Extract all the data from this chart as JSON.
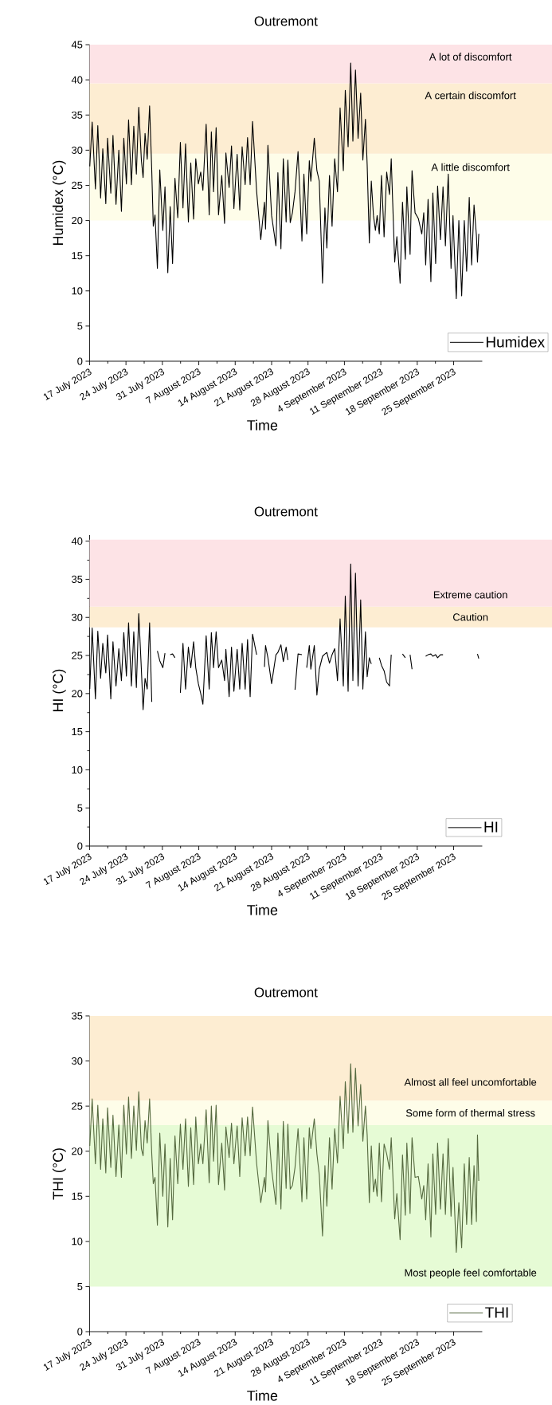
{
  "chart_data": [
    {
      "type": "line",
      "title": "Outremont",
      "xlabel": "Time",
      "ylabel": "Humidex (°C)",
      "x": [
        "2023-07-17T01:00",
        "2023-07-17T12:00",
        "2023-07-18T03:00",
        "2023-07-18T14:00",
        "2023-07-19T03:00",
        "2023-07-19T13:00",
        "2023-07-20T03:00",
        "2023-07-20T11:00",
        "2023-07-21T02:00",
        "2023-07-21T12:00",
        "2023-07-22T02:00",
        "2023-07-22T15:00",
        "2023-07-23T03:00",
        "2023-07-23T14:00",
        "2023-07-24T02:00",
        "2023-07-24T12:00",
        "2023-07-25T01:00",
        "2023-07-25T12:00",
        "2023-07-26T00:00",
        "2023-07-26T11:00",
        "2023-07-26T23:00",
        "2023-07-27T07:00",
        "2023-07-27T16:00",
        "2023-07-28T02:00",
        "2023-07-28T13:00",
        "2023-07-28T23:00",
        "2023-07-29T06:00",
        "2023-07-29T14:00",
        "2023-07-30T01:00",
        "2023-07-30T12:00",
        "2023-07-31T02:00",
        "2023-07-31T12:00",
        "2023-08-01T01:00",
        "2023-08-01T12:00",
        "2023-08-01T23:00",
        "2023-08-02T10:00",
        "2023-08-02T23:00",
        "2023-08-03T11:00",
        "2023-08-03T23:00",
        "2023-08-04T11:00",
        "2023-08-05T00:00",
        "2023-08-05T11:00",
        "2023-08-06T00:00",
        "2023-08-06T10:00",
        "2023-08-06T22:00",
        "2023-08-07T09:00",
        "2023-08-07T19:00",
        "2023-08-08T10:00",
        "2023-08-09T00:00",
        "2023-08-09T10:00",
        "2023-08-09T20:00",
        "2023-08-10T08:00",
        "2023-08-10T19:00",
        "2023-08-11T10:00",
        "2023-08-11T23:00",
        "2023-08-12T05:00",
        "2023-08-12T20:00",
        "2023-08-13T07:00",
        "2023-08-13T18:00",
        "2023-08-14T09:00",
        "2023-08-14T21:00",
        "2023-08-15T08:00",
        "2023-08-15T22:00",
        "2023-08-16T09:00",
        "2023-08-16T21:00",
        "2023-08-17T08:00",
        "2023-08-18T03:00",
        "2023-08-18T22:00",
        "2023-08-19T15:00",
        "2023-08-19T20:00",
        "2023-08-20T07:00",
        "2023-08-21T00:00",
        "2023-08-21T20:00",
        "2023-08-22T05:00",
        "2023-08-22T19:00",
        "2023-08-23T06:00",
        "2023-08-23T19:00",
        "2023-08-24T03:00",
        "2023-08-24T14:00",
        "2023-08-25T00:00",
        "2023-08-25T12:00",
        "2023-08-26T02:00",
        "2023-08-26T20:00",
        "2023-08-27T05:00",
        "2023-08-27T18:00",
        "2023-08-28T06:00",
        "2023-08-28T13:00",
        "2023-08-29T05:00",
        "2023-08-29T17:00",
        "2023-08-30T04:00",
        "2023-08-30T19:00",
        "2023-08-31T06:00",
        "2023-08-31T15:00",
        "2023-09-01T03:00",
        "2023-09-01T15:00",
        "2023-09-02T03:00",
        "2023-09-02T16:00",
        "2023-09-03T04:00",
        "2023-09-03T19:00",
        "2023-09-04T04:00",
        "2023-09-04T17:00",
        "2023-09-05T05:00",
        "2023-09-05T15:00",
        "2023-09-06T03:00",
        "2023-09-06T15:00",
        "2023-09-07T03:00",
        "2023-09-07T13:00",
        "2023-09-08T01:00",
        "2023-09-08T09:00",
        "2023-09-08T19:00",
        "2023-09-09T04:00",
        "2023-09-09T14:00",
        "2023-09-09T23:00",
        "2023-09-10T07:00",
        "2023-09-10T17:00",
        "2023-09-11T03:00",
        "2023-09-11T15:00",
        "2023-09-12T03:00",
        "2023-09-12T16:00",
        "2023-09-13T00:00",
        "2023-09-13T16:00",
        "2023-09-14T02:00",
        "2023-09-14T17:00",
        "2023-09-15T04:00",
        "2023-09-15T17:00",
        "2023-09-16T00:00",
        "2023-09-16T15:00",
        "2023-09-17T00:00",
        "2023-09-17T14:00",
        "2023-09-18T05:00",
        "2023-09-18T21:00",
        "2023-09-19T06:00",
        "2023-09-19T15:00",
        "2023-09-20T02:00",
        "2023-09-20T15:00",
        "2023-09-21T00:00",
        "2023-09-21T13:00",
        "2023-09-21T22:00",
        "2023-09-22T11:00",
        "2023-09-22T23:00",
        "2023-09-23T10:00",
        "2023-09-23T23:00",
        "2023-09-24T12:00",
        "2023-09-24T21:00",
        "2023-09-25T12:00",
        "2023-09-26T00:00",
        "2023-09-26T13:00",
        "2023-09-27T01:00",
        "2023-09-27T12:00",
        "2023-09-28T00:00",
        "2023-09-28T11:00",
        "2023-09-28T22:00",
        "2023-09-29T09:00",
        "2023-09-29T14:00",
        "2023-09-29T20:00"
      ],
      "series": [
        {
          "name": "Humidex",
          "color": "#000000",
          "values": [
            27.7,
            34.0,
            24.5,
            33.5,
            23.2,
            30.2,
            22.4,
            31.7,
            23.9,
            32.1,
            22.3,
            30.0,
            21.3,
            31.7,
            25.2,
            34.3,
            25.1,
            33.4,
            26.6,
            36.1,
            28.6,
            26.1,
            32.4,
            28.7,
            36.3,
            27.1,
            19.2,
            20.8,
            13.2,
            27.2,
            18.6,
            24.8,
            12.6,
            22.0,
            13.9,
            26.0,
            20.4,
            31.1,
            21.8,
            30.9,
            19.8,
            28.2,
            20.2,
            28.8,
            25.2,
            26.9,
            24.3,
            33.7,
            20.8,
            32.6,
            24.1,
            33.2,
            20.8,
            26.4,
            19.6,
            29.6,
            24.7,
            30.6,
            21.7,
            29.4,
            21.5,
            30.5,
            25.1,
            31.8,
            25.1,
            34.1,
            24.1,
            17.3,
            22.6,
            18.8,
            30.7,
            20.7,
            16.4,
            26.8,
            16.0,
            28.8,
            19.8,
            28.6,
            19.7,
            21.1,
            24.1,
            29.8,
            17.1,
            26.6,
            18.1,
            28.5,
            25.6,
            31.7,
            27.1,
            25.6,
            11.1,
            21.8,
            16.1,
            26.4,
            19.2,
            28.8,
            24.1,
            36.0,
            27.1,
            38.5,
            30.5,
            42.4,
            31.3,
            41.4,
            31.7,
            38.1,
            28.6,
            34.4,
            27.9,
            16.8,
            25.6,
            20.7,
            18.6,
            20.7,
            18.1,
            26.4,
            17.7,
            26.9,
            23.7,
            28.8,
            14.1,
            17.7,
            11.1,
            22.6,
            14.5,
            24.8,
            15.2,
            27.1,
            21.1,
            20.3,
            18.1,
            21.1,
            13.7,
            23.0,
            11.3,
            23.9,
            13.9,
            24.9,
            17.3,
            24.8,
            16.4,
            26.6,
            13.2,
            20.7,
            8.9,
            20.0,
            9.3,
            20.0,
            12.8,
            23.3,
            13.7,
            22.2,
            17.9,
            14.1,
            18.1
          ]
        }
      ],
      "xlim": [
        "2023-07-17",
        "2023-09-30T12:00"
      ],
      "xticks": [
        {
          "value": "2023-07-17",
          "label": "17 July 2023"
        },
        {
          "value": "2023-07-24",
          "label": "24 July 2023"
        },
        {
          "value": "2023-07-31",
          "label": "31 July 2023"
        },
        {
          "value": "2023-08-07",
          "label": "7 August 2023"
        },
        {
          "value": "2023-08-14",
          "label": "14 August 2023"
        },
        {
          "value": "2023-08-21",
          "label": "21 August 2023"
        },
        {
          "value": "2023-08-28",
          "label": "28 August 2023"
        },
        {
          "value": "2023-09-04",
          "label": "4 September 2023"
        },
        {
          "value": "2023-09-11",
          "label": "11 September 2023"
        },
        {
          "value": "2023-09-18",
          "label": "18 September 2023"
        },
        {
          "value": "2023-09-25",
          "label": "25 September 2023"
        }
      ],
      "ylim": [
        0,
        45
      ],
      "yticks": [
        0,
        5,
        10,
        15,
        20,
        25,
        30,
        35,
        40,
        45
      ],
      "bands": [
        {
          "axis": "y",
          "from": 20,
          "to": 29.5,
          "label": "A little discomfort",
          "color": "#fefde9"
        },
        {
          "axis": "y",
          "from": 29.5,
          "to": 39.5,
          "label": "A certain discomfort",
          "color": "#fdedd2"
        },
        {
          "axis": "y",
          "from": 39.5,
          "to": 45,
          "label": "A lot of discomfort",
          "color": "#fde3e6"
        }
      ],
      "legend": "bottom right"
    },
    {
      "type": "line",
      "title": "Outremont",
      "xlabel": "Time",
      "ylabel": "HI (°C)",
      "x": [
        "2023-07-17T01:00",
        "2023-07-17T12:00",
        "2023-07-18T03:00",
        "2023-07-18T14:00",
        "2023-07-19T03:00",
        "2023-07-19T13:00",
        "2023-07-20T03:00",
        "2023-07-20T11:00",
        "2023-07-21T02:00",
        "2023-07-21T12:00",
        "2023-07-22T02:00",
        "2023-07-22T15:00",
        "2023-07-23T03:00",
        "2023-07-23T14:00",
        "2023-07-24T02:00",
        "2023-07-24T12:00",
        "2023-07-25T01:00",
        "2023-07-25T12:00",
        "2023-07-26T00:00",
        "2023-07-26T11:00",
        "2023-07-26T23:00",
        "2023-07-27T07:00",
        "2023-07-27T16:00",
        "2023-07-28T02:00",
        "2023-07-28T13:00",
        "2023-07-28T23:00",
        "2023-07-29T06:00",
        "2023-07-29T14:00",
        "2023-07-30T01:00",
        "2023-07-30T12:00",
        "2023-07-31T02:00",
        "2023-07-31T12:00",
        "2023-08-01T01:00",
        "2023-08-01T12:00",
        "2023-08-01T23:00",
        "2023-08-02T10:00",
        "2023-08-02T23:00",
        "2023-08-03T11:00",
        "2023-08-03T23:00",
        "2023-08-04T11:00",
        "2023-08-05T00:00",
        "2023-08-05T11:00",
        "2023-08-06T00:00",
        "2023-08-06T10:00",
        "2023-08-06T22:00",
        "2023-08-07T09:00",
        "2023-08-07T19:00",
        "2023-08-08T10:00",
        "2023-08-09T00:00",
        "2023-08-09T10:00",
        "2023-08-09T20:00",
        "2023-08-10T08:00",
        "2023-08-10T19:00",
        "2023-08-11T10:00",
        "2023-08-11T23:00",
        "2023-08-12T05:00",
        "2023-08-12T20:00",
        "2023-08-13T07:00",
        "2023-08-13T18:00",
        "2023-08-14T09:00",
        "2023-08-14T21:00",
        "2023-08-15T08:00",
        "2023-08-15T22:00",
        "2023-08-16T09:00",
        "2023-08-16T21:00",
        "2023-08-17T08:00",
        "2023-08-18T03:00",
        "2023-08-18T22:00",
        "2023-08-19T15:00",
        "2023-08-19T20:00",
        "2023-08-20T07:00",
        "2023-08-21T00:00",
        "2023-08-21T20:00",
        "2023-08-22T05:00",
        "2023-08-22T19:00",
        "2023-08-23T06:00",
        "2023-08-23T19:00",
        "2023-08-24T03:00",
        "2023-08-24T14:00",
        "2023-08-25T00:00",
        "2023-08-25T12:00",
        "2023-08-26T02:00",
        "2023-08-26T20:00",
        "2023-08-27T05:00",
        "2023-08-27T18:00",
        "2023-08-28T06:00",
        "2023-08-28T13:00",
        "2023-08-29T05:00",
        "2023-08-29T17:00",
        "2023-08-30T04:00",
        "2023-08-30T19:00",
        "2023-08-31T06:00",
        "2023-08-31T15:00",
        "2023-09-01T03:00",
        "2023-09-01T15:00",
        "2023-09-02T03:00",
        "2023-09-02T16:00",
        "2023-09-03T04:00",
        "2023-09-03T19:00",
        "2023-09-04T04:00",
        "2023-09-04T17:00",
        "2023-09-05T05:00",
        "2023-09-05T15:00",
        "2023-09-06T03:00",
        "2023-09-06T15:00",
        "2023-09-07T03:00",
        "2023-09-07T13:00",
        "2023-09-08T01:00",
        "2023-09-08T09:00",
        "2023-09-08T19:00",
        "2023-09-09T04:00",
        "2023-09-09T14:00",
        "2023-09-09T23:00",
        "2023-09-10T07:00",
        "2023-09-10T17:00",
        "2023-09-11T03:00",
        "2023-09-11T15:00",
        "2023-09-12T03:00",
        "2023-09-12T16:00",
        "2023-09-13T00:00",
        "2023-09-13T16:00",
        "2023-09-14T02:00",
        "2023-09-14T17:00",
        "2023-09-15T04:00",
        "2023-09-15T17:00",
        "2023-09-16T00:00",
        "2023-09-16T15:00",
        "2023-09-17T00:00",
        "2023-09-17T14:00",
        "2023-09-18T05:00",
        "2023-09-18T21:00",
        "2023-09-19T06:00",
        "2023-09-19T15:00",
        "2023-09-20T02:00",
        "2023-09-20T15:00",
        "2023-09-21T00:00",
        "2023-09-21T13:00",
        "2023-09-21T22:00",
        "2023-09-22T11:00",
        "2023-09-22T23:00",
        "2023-09-23T10:00",
        "2023-09-23T23:00",
        "2023-09-24T12:00",
        "2023-09-24T21:00",
        "2023-09-25T12:00",
        "2023-09-26T00:00",
        "2023-09-26T13:00",
        "2023-09-27T01:00",
        "2023-09-27T12:00",
        "2023-09-28T00:00",
        "2023-09-28T11:00",
        "2023-09-28T22:00",
        "2023-09-29T09:00",
        "2023-09-29T14:00",
        "2023-09-29T20:00"
      ],
      "series": [
        {
          "name": "HI",
          "color": "#000000",
          "values": [
            20.6,
            28.6,
            19.3,
            28.2,
            22.0,
            26.6,
            22.7,
            27.7,
            19.3,
            26.8,
            21.0,
            25.9,
            21.7,
            28.0,
            22.3,
            29.3,
            21.0,
            28.1,
            20.8,
            30.5,
            23.2,
            17.9,
            22.0,
            20.6,
            29.3,
            18.9,
            null,
            null,
            25.6,
            24.3,
            23.4,
            25.3,
            null,
            25.1,
            25.2,
            24.7,
            null,
            20.1,
            26.6,
            20.6,
            26.1,
            23.4,
            26.8,
            23.4,
            21.3,
            20.0,
            18.6,
            27.6,
            20.6,
            28.0,
            23.4,
            28.1,
            23.4,
            24.4,
            21.7,
            25.8,
            19.6,
            26.1,
            20.3,
            25.8,
            20.6,
            26.6,
            20.6,
            27.1,
            19.6,
            27.8,
            25.1,
            null,
            23.5,
            26.3,
            24.7,
            21.3,
            25.1,
            25.4,
            26.4,
            24.2,
            26.1,
            24.4,
            null,
            null,
            20.5,
            25.2,
            25.1,
            null,
            23.4,
            26.3,
            23.2,
            26.3,
            19.8,
            23.2,
            24.9,
            25.2,
            25.4,
            24.0,
            25.1,
            25.9,
            21.7,
            29.8,
            21.0,
            32.8,
            20.3,
            37.0,
            21.7,
            35.8,
            21.0,
            32.3,
            20.6,
            28.1,
            22.2,
            24.7,
            23.9,
            null,
            null,
            null,
            24.7,
            23.7,
            23.0,
            21.5,
            21.0,
            25.1,
            null,
            null,
            null,
            25.2,
            24.7,
            null,
            25.1,
            23.2,
            null,
            null,
            null,
            null,
            24.9,
            25.1,
            25.2,
            24.9,
            25.1,
            24.7,
            25.1,
            25.1,
            null,
            null,
            null,
            null,
            null,
            null,
            null,
            null,
            null,
            null,
            null,
            null,
            null,
            25.2,
            24.6
          ]
        }
      ],
      "xlim": [
        "2023-07-17",
        "2023-09-30T12:00"
      ],
      "xticks": [
        {
          "value": "2023-07-17",
          "label": "17 July 2023"
        },
        {
          "value": "2023-07-24",
          "label": "24 July 2023"
        },
        {
          "value": "2023-07-31",
          "label": "31 July 2023"
        },
        {
          "value": "2023-08-07",
          "label": "7 August 2023"
        },
        {
          "value": "2023-08-14",
          "label": "14 August 2023"
        },
        {
          "value": "2023-08-21",
          "label": "21 August 2023"
        },
        {
          "value": "2023-08-28",
          "label": "28 August 2023"
        },
        {
          "value": "2023-09-04",
          "label": "4 September 2023"
        },
        {
          "value": "2023-09-11",
          "label": "11 September 2023"
        },
        {
          "value": "2023-09-18",
          "label": "18 September 2023"
        },
        {
          "value": "2023-09-25",
          "label": "25 September 2023"
        }
      ],
      "ylim": [
        0,
        40.8
      ],
      "yticks": [
        0,
        5,
        10,
        15,
        20,
        25,
        30,
        35,
        40
      ],
      "bands": [
        {
          "axis": "y",
          "from": 28.7,
          "to": 31.4,
          "label": "Caution",
          "color": "#fdedd2"
        },
        {
          "axis": "y",
          "from": 31.4,
          "to": 40.2,
          "label": "Extreme caution",
          "color": "#fde3e6"
        }
      ],
      "legend": "bottom right"
    },
    {
      "type": "line",
      "title": "Outremont",
      "xlabel": "Time",
      "ylabel": "THI (°C)",
      "x": [
        "2023-07-17T01:00",
        "2023-07-17T12:00",
        "2023-07-18T03:00",
        "2023-07-18T14:00",
        "2023-07-19T03:00",
        "2023-07-19T13:00",
        "2023-07-20T03:00",
        "2023-07-20T11:00",
        "2023-07-21T02:00",
        "2023-07-21T12:00",
        "2023-07-22T02:00",
        "2023-07-22T15:00",
        "2023-07-23T03:00",
        "2023-07-23T14:00",
        "2023-07-24T02:00",
        "2023-07-24T12:00",
        "2023-07-25T01:00",
        "2023-07-25T12:00",
        "2023-07-26T00:00",
        "2023-07-26T11:00",
        "2023-07-26T23:00",
        "2023-07-27T07:00",
        "2023-07-27T16:00",
        "2023-07-28T02:00",
        "2023-07-28T13:00",
        "2023-07-28T23:00",
        "2023-07-29T06:00",
        "2023-07-29T14:00",
        "2023-07-30T01:00",
        "2023-07-30T12:00",
        "2023-07-31T02:00",
        "2023-07-31T12:00",
        "2023-08-01T01:00",
        "2023-08-01T12:00",
        "2023-08-01T23:00",
        "2023-08-02T10:00",
        "2023-08-02T23:00",
        "2023-08-03T11:00",
        "2023-08-03T23:00",
        "2023-08-04T11:00",
        "2023-08-05T00:00",
        "2023-08-05T11:00",
        "2023-08-06T00:00",
        "2023-08-06T10:00",
        "2023-08-06T22:00",
        "2023-08-07T09:00",
        "2023-08-07T19:00",
        "2023-08-08T10:00",
        "2023-08-09T00:00",
        "2023-08-09T10:00",
        "2023-08-09T20:00",
        "2023-08-10T08:00",
        "2023-08-10T19:00",
        "2023-08-11T10:00",
        "2023-08-11T23:00",
        "2023-08-12T05:00",
        "2023-08-12T20:00",
        "2023-08-13T07:00",
        "2023-08-13T18:00",
        "2023-08-14T09:00",
        "2023-08-14T21:00",
        "2023-08-15T08:00",
        "2023-08-15T22:00",
        "2023-08-16T09:00",
        "2023-08-16T21:00",
        "2023-08-17T08:00",
        "2023-08-18T03:00",
        "2023-08-18T22:00",
        "2023-08-19T15:00",
        "2023-08-19T20:00",
        "2023-08-20T07:00",
        "2023-08-21T00:00",
        "2023-08-21T20:00",
        "2023-08-22T05:00",
        "2023-08-22T19:00",
        "2023-08-23T06:00",
        "2023-08-23T19:00",
        "2023-08-24T03:00",
        "2023-08-24T14:00",
        "2023-08-25T00:00",
        "2023-08-25T12:00",
        "2023-08-26T02:00",
        "2023-08-26T20:00",
        "2023-08-27T05:00",
        "2023-08-27T18:00",
        "2023-08-28T06:00",
        "2023-08-28T13:00",
        "2023-08-29T05:00",
        "2023-08-29T17:00",
        "2023-08-30T04:00",
        "2023-08-30T19:00",
        "2023-08-31T06:00",
        "2023-08-31T15:00",
        "2023-09-01T03:00",
        "2023-09-01T15:00",
        "2023-09-02T03:00",
        "2023-09-02T16:00",
        "2023-09-03T04:00",
        "2023-09-03T19:00",
        "2023-09-04T04:00",
        "2023-09-04T17:00",
        "2023-09-05T05:00",
        "2023-09-05T15:00",
        "2023-09-06T03:00",
        "2023-09-06T15:00",
        "2023-09-07T03:00",
        "2023-09-07T13:00",
        "2023-09-08T01:00",
        "2023-09-08T09:00",
        "2023-09-08T19:00",
        "2023-09-09T04:00",
        "2023-09-09T14:00",
        "2023-09-09T23:00",
        "2023-09-10T07:00",
        "2023-09-10T17:00",
        "2023-09-11T03:00",
        "2023-09-11T15:00",
        "2023-09-12T03:00",
        "2023-09-12T16:00",
        "2023-09-13T00:00",
        "2023-09-13T16:00",
        "2023-09-14T02:00",
        "2023-09-14T17:00",
        "2023-09-15T04:00",
        "2023-09-15T17:00",
        "2023-09-16T00:00",
        "2023-09-16T15:00",
        "2023-09-17T00:00",
        "2023-09-17T14:00",
        "2023-09-18T05:00",
        "2023-09-18T21:00",
        "2023-09-19T06:00",
        "2023-09-19T15:00",
        "2023-09-20T02:00",
        "2023-09-20T15:00",
        "2023-09-21T00:00",
        "2023-09-21T13:00",
        "2023-09-21T22:00",
        "2023-09-22T11:00",
        "2023-09-22T23:00",
        "2023-09-23T10:00",
        "2023-09-23T23:00",
        "2023-09-24T12:00",
        "2023-09-24T21:00",
        "2023-09-25T12:00",
        "2023-09-26T00:00",
        "2023-09-26T13:00",
        "2023-09-27T01:00",
        "2023-09-27T12:00",
        "2023-09-28T00:00",
        "2023-09-28T11:00",
        "2023-09-28T22:00",
        "2023-09-29T09:00",
        "2023-09-29T14:00",
        "2023-09-29T20:00"
      ],
      "series": [
        {
          "name": "THI",
          "color": "#55693f",
          "values": [
            20.6,
            25.8,
            18.6,
            25.1,
            18.0,
            23.6,
            17.6,
            24.8,
            18.2,
            24.0,
            17.2,
            22.9,
            17.1,
            25.1,
            19.7,
            26.0,
            19.2,
            25.0,
            20.1,
            26.6,
            20.3,
            19.5,
            23.4,
            20.9,
            25.8,
            19.7,
            16.4,
            17.1,
            11.8,
            22.0,
            15.0,
            20.8,
            11.6,
            19.2,
            12.4,
            21.7,
            16.4,
            23.0,
            18.0,
            23.6,
            16.1,
            22.6,
            16.3,
            23.8,
            18.6,
            20.8,
            18.6,
            24.6,
            16.5,
            25.0,
            18.9,
            25.1,
            16.3,
            20.9,
            15.7,
            22.7,
            19.3,
            23.1,
            18.6,
            22.8,
            17.2,
            23.7,
            19.5,
            23.8,
            19.5,
            24.9,
            18.6,
            14.3,
            17.1,
            15.5,
            23.4,
            18.0,
            14.1,
            22.0,
            13.6,
            23.3,
            15.9,
            23.0,
            15.8,
            16.2,
            18.2,
            22.5,
            14.4,
            21.5,
            14.7,
            22.6,
            20.3,
            23.6,
            19.7,
            17.4,
            10.6,
            18.4,
            13.9,
            21.5,
            15.8,
            22.5,
            18.7,
            26.1,
            20.3,
            27.7,
            22.0,
            29.7,
            22.1,
            29.2,
            22.8,
            27.4,
            21.1,
            25.0,
            21.8,
            14.3,
            20.6,
            15.5,
            16.9,
            15.0,
            20.9,
            14.4,
            20.8,
            19.7,
            18.0,
            21.5,
            12.5,
            15.3,
            10.2,
            19.6,
            12.9,
            20.9,
            13.1,
            21.5,
            17.1,
            17.2,
            14.7,
            16.2,
            12.4,
            18.6,
            10.5,
            19.7,
            13.0,
            20.9,
            13.6,
            19.7,
            13.0,
            21.4,
            12.8,
            18.2,
            8.8,
            14.3,
            9.3,
            18.6,
            11.9,
            19.3,
            11.9,
            18.4,
            12.2,
            21.8,
            16.7
          ]
        }
      ],
      "xlim": [
        "2023-07-17",
        "2023-09-30T12:00"
      ],
      "xticks": [
        {
          "value": "2023-07-17",
          "label": "17 July 2023"
        },
        {
          "value": "2023-07-24",
          "label": "24 July 2023"
        },
        {
          "value": "2023-07-31",
          "label": "31 July 2023"
        },
        {
          "value": "2023-08-07",
          "label": "7 August 2023"
        },
        {
          "value": "2023-08-14",
          "label": "14 August 2023"
        },
        {
          "value": "2023-08-21",
          "label": "21 August 2023"
        },
        {
          "value": "2023-08-28",
          "label": "28 August 2023"
        },
        {
          "value": "2023-09-04",
          "label": "4 September 2023"
        },
        {
          "value": "2023-09-11",
          "label": "11 September 2023"
        },
        {
          "value": "2023-09-18",
          "label": "18 September 2023"
        },
        {
          "value": "2023-09-25",
          "label": "25 September 2023"
        }
      ],
      "ylim": [
        0,
        35
      ],
      "yticks": [
        0,
        5,
        10,
        15,
        20,
        25,
        30,
        35
      ],
      "bands": [
        {
          "axis": "y",
          "from": 5,
          "to": 22.9,
          "label": "Most people feel comfortable",
          "color": "#e6fbd5"
        },
        {
          "axis": "y",
          "from": 22.9,
          "to": 25.6,
          "label": "Some form of thermal stress",
          "color": "#fefde9"
        },
        {
          "axis": "y",
          "from": 25.6,
          "to": 35,
          "label": "Almost all feel uncomfortable",
          "color": "#fdedd2"
        }
      ],
      "legend": "bottom right"
    }
  ]
}
